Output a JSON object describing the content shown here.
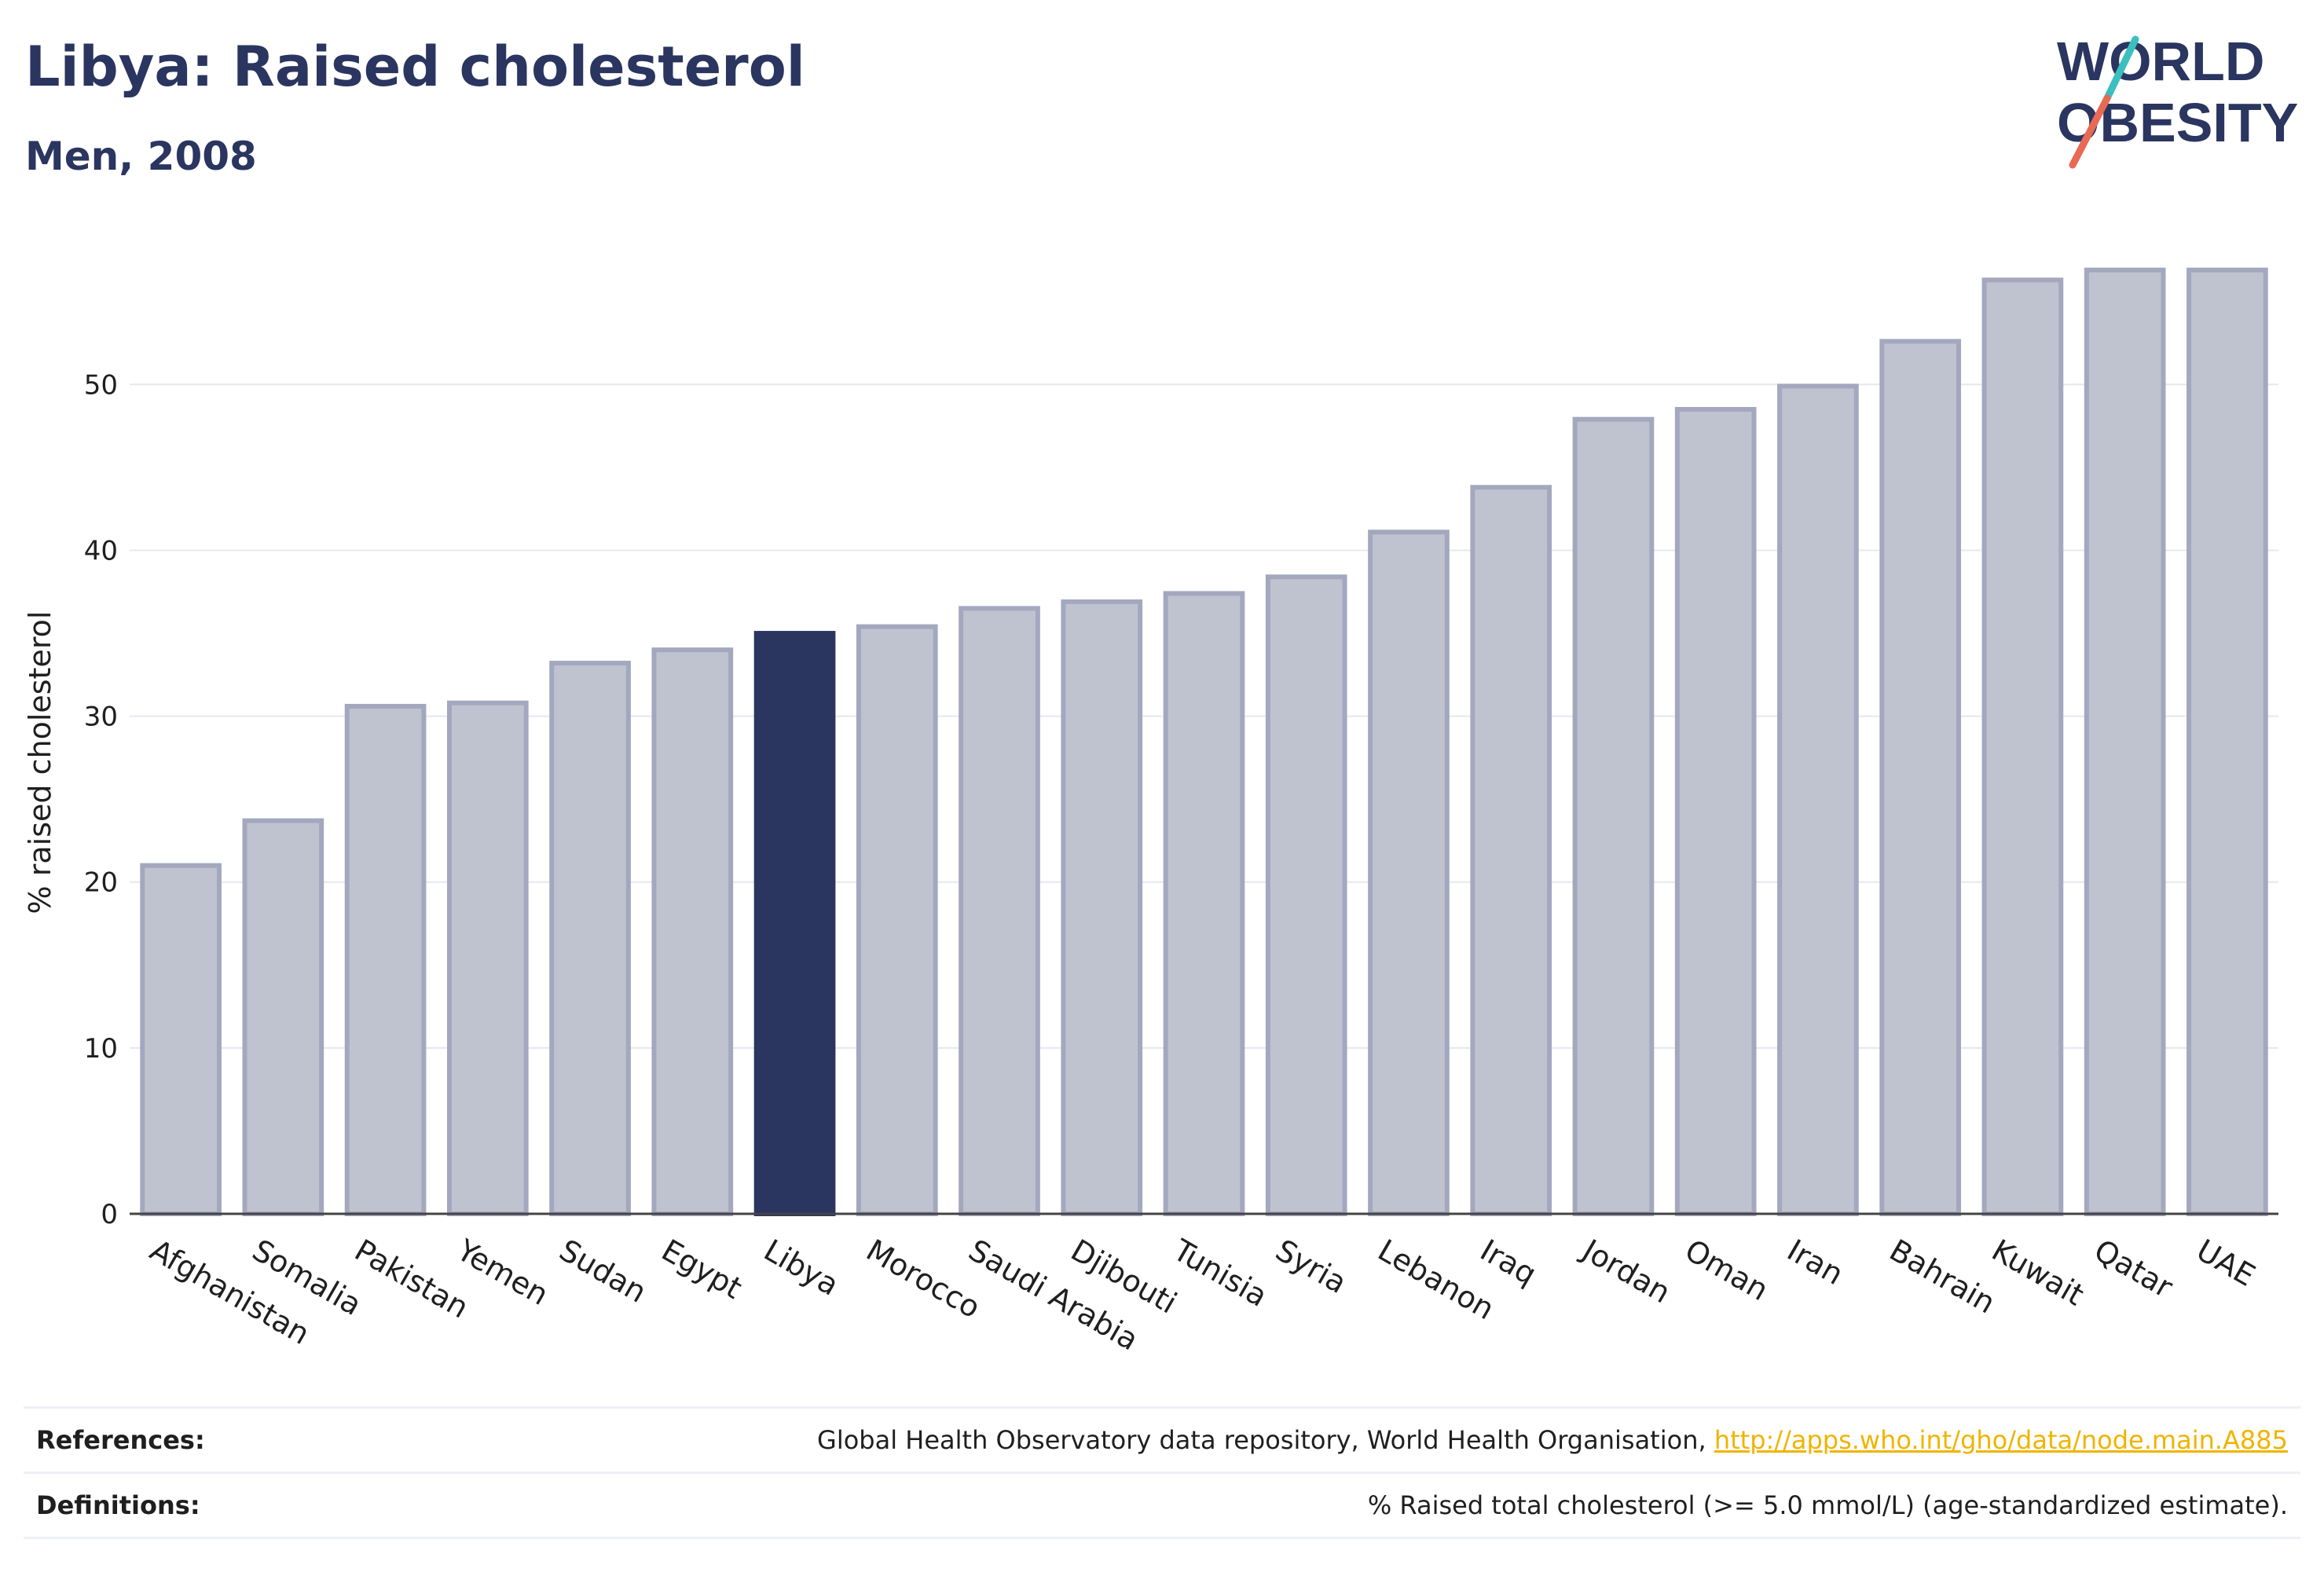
{
  "title": "Libya: Raised cholesterol",
  "subtitle": "Men, 2008",
  "logo": {
    "line1": "WORLD",
    "line2": "OBESITY",
    "accent_teal": "#3bbfbf",
    "accent_red": "#e86a55"
  },
  "colors": {
    "highlight": "#2a3560",
    "bar": "#bfc3d0",
    "bar_stroke": "#a3a8bf"
  },
  "chart_data": {
    "type": "bar",
    "categories": [
      "Afghanistan",
      "Somalia",
      "Pakistan",
      "Yemen",
      "Sudan",
      "Egypt",
      "Libya",
      "Morocco",
      "Saudi Arabia",
      "Djibouti",
      "Tunisia",
      "Syria",
      "Lebanon",
      "Iraq",
      "Jordan",
      "Oman",
      "Iran",
      "Bahrain",
      "Kuwait",
      "Qatar",
      "UAE"
    ],
    "values": [
      21.0,
      23.7,
      30.6,
      30.8,
      33.2,
      34.0,
      35.0,
      35.4,
      36.5,
      36.9,
      37.4,
      38.4,
      41.1,
      43.8,
      47.9,
      48.5,
      49.9,
      52.6,
      56.3,
      56.9,
      56.9
    ],
    "highlight": "Libya",
    "ylabel": "% raised cholesterol",
    "xlabel": "",
    "yticks": [
      0,
      10,
      20,
      30,
      40,
      50
    ],
    "ylim": [
      0,
      62
    ],
    "grid": true
  },
  "footer": {
    "references_label": "References:",
    "references_text": "Global Health Observatory data repository, World Health Organisation, ",
    "references_link": "http://apps.who.int/gho/data/node.main.A885",
    "definitions_label": "Definitions:",
    "definitions_text": "% Raised total cholesterol (>= 5.0 mmol/L) (age-standardized estimate)."
  }
}
